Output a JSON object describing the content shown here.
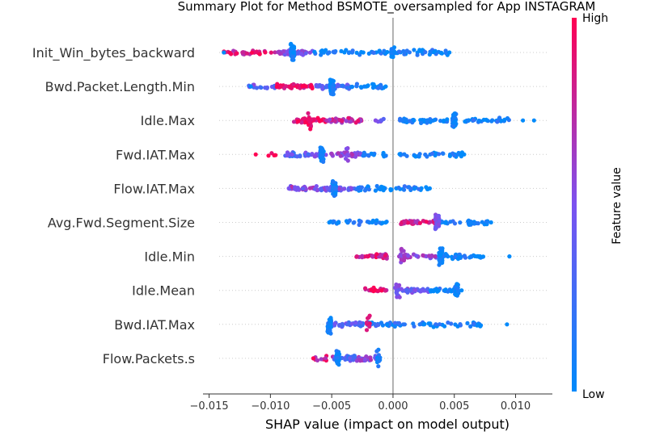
{
  "chart_data": {
    "type": "scatter",
    "subtype": "shap-beeswarm-summary",
    "title": "Summary Plot for Method BSMOTE_oversampled for App INSTAGRAM",
    "xlabel": "SHAP value (impact on model output)",
    "xlim": [
      -0.0155,
      0.013
    ],
    "xticks": [
      -0.015,
      -0.01,
      -0.005,
      0.0,
      0.005,
      0.01
    ],
    "xtick_labels": [
      "−0.015",
      "−0.010",
      "−0.005",
      "0.000",
      "0.005",
      "0.010"
    ],
    "zero_line": 0.0,
    "grid": false,
    "colorbar": {
      "label": "Feature value",
      "high_label": "High",
      "low_label": "Low",
      "low_color": "#008afb",
      "mid_color": "#7c52f0",
      "high_color": "#ff0052"
    },
    "features": [
      {
        "name": "Init_Win_bytes_backward",
        "segments": [
          {
            "x0": -0.0142,
            "x1": -0.0095,
            "n": 30,
            "v": 0.85
          },
          {
            "x0": -0.0095,
            "x1": -0.0065,
            "n": 45,
            "v": 0.5
          },
          {
            "x0": -0.0065,
            "x1": -0.0005,
            "n": 40,
            "v": 0.05
          },
          {
            "x0": -0.0005,
            "x1": 0.0045,
            "n": 40,
            "v": 0.05
          }
        ],
        "clusters": [
          {
            "x": -0.0082,
            "n": 36,
            "v": 0.05
          },
          {
            "x": 0.0,
            "n": 10,
            "v": 0.05
          }
        ],
        "outliers": [
          {
            "x": -0.0138,
            "v": 0.0
          },
          {
            "x": 0.0046,
            "v": 0.0
          }
        ]
      },
      {
        "name": "Bwd.Packet.Length.Min",
        "segments": [
          {
            "x0": -0.0118,
            "x1": -0.0095,
            "n": 18,
            "v": 0.4
          },
          {
            "x0": -0.0095,
            "x1": -0.0065,
            "n": 40,
            "v": 0.9
          },
          {
            "x0": -0.0065,
            "x1": -0.0035,
            "n": 40,
            "v": 0.35
          },
          {
            "x0": -0.0035,
            "x1": -0.0005,
            "n": 25,
            "v": 0.05
          }
        ],
        "clusters": [
          {
            "x": -0.005,
            "n": 38,
            "v": 0.05
          }
        ],
        "outliers": [
          {
            "x": -0.0116,
            "v": 0.0
          },
          {
            "x": -0.0006,
            "v": 0.0
          }
        ]
      },
      {
        "name": "Idle.Max",
        "segments": [
          {
            "x0": -0.0082,
            "x1": -0.0055,
            "n": 40,
            "v": 0.95
          },
          {
            "x0": -0.0055,
            "x1": -0.0025,
            "n": 35,
            "v": 0.75
          },
          {
            "x0": -0.0015,
            "x1": -0.0005,
            "n": 8,
            "v": 0.5
          },
          {
            "x0": 0.0005,
            "x1": 0.0045,
            "n": 40,
            "v": 0.05
          },
          {
            "x0": 0.0055,
            "x1": 0.0095,
            "n": 35,
            "v": 0.05
          }
        ],
        "clusters": [
          {
            "x": 0.005,
            "n": 38,
            "v": 0.05
          },
          {
            "x": -0.0068,
            "n": 14,
            "v": 0.95
          }
        ],
        "outliers": [
          {
            "x": 0.0115,
            "v": 0.0
          },
          {
            "x": 0.0106,
            "v": 0.0
          }
        ]
      },
      {
        "name": "Fwd.IAT.Max",
        "segments": [
          {
            "x0": -0.0112,
            "x1": -0.0095,
            "n": 4,
            "v": 0.95
          },
          {
            "x0": -0.0088,
            "x1": -0.0065,
            "n": 28,
            "v": 0.35
          },
          {
            "x0": -0.0065,
            "x1": -0.0025,
            "n": 40,
            "v": 0.55
          },
          {
            "x0": -0.0025,
            "x1": -0.0005,
            "n": 15,
            "v": 0.05
          },
          {
            "x0": 0.0005,
            "x1": 0.0058,
            "n": 35,
            "v": 0.05
          }
        ],
        "clusters": [
          {
            "x": -0.0058,
            "n": 36,
            "v": 0.05
          },
          {
            "x": -0.0038,
            "n": 10,
            "v": 0.6
          }
        ],
        "outliers": [
          {
            "x": -0.0112,
            "v": 1.0
          },
          {
            "x": 0.0058,
            "v": 0.0
          }
        ]
      },
      {
        "name": "Flow.IAT.Max",
        "segments": [
          {
            "x0": -0.0085,
            "x1": -0.006,
            "n": 30,
            "v": 0.55
          },
          {
            "x0": -0.006,
            "x1": -0.003,
            "n": 38,
            "v": 0.45
          },
          {
            "x0": -0.003,
            "x1": 0.0,
            "n": 30,
            "v": 0.05
          },
          {
            "x0": 0.0,
            "x1": 0.003,
            "n": 20,
            "v": 0.05
          }
        ],
        "clusters": [
          {
            "x": -0.0048,
            "n": 34,
            "v": 0.05
          }
        ],
        "outliers": [
          {
            "x": 0.003,
            "v": 0.0
          },
          {
            "x": -0.0085,
            "v": 0.5
          }
        ]
      },
      {
        "name": "Avg.Fwd.Segment.Size",
        "segments": [
          {
            "x0": -0.0052,
            "x1": -0.0005,
            "n": 32,
            "v": 0.05
          },
          {
            "x0": 0.0005,
            "x1": 0.0035,
            "n": 40,
            "v": 0.8
          },
          {
            "x0": 0.0035,
            "x1": 0.008,
            "n": 40,
            "v": 0.05
          }
        ],
        "clusters": [
          {
            "x": 0.0036,
            "n": 36,
            "v": 0.5
          }
        ],
        "outliers": [
          {
            "x": -0.0052,
            "v": 0.0
          },
          {
            "x": 0.008,
            "v": 0.0
          }
        ]
      },
      {
        "name": "Idle.Min",
        "segments": [
          {
            "x0": -0.003,
            "x1": -0.0005,
            "n": 35,
            "v": 0.85
          },
          {
            "x0": 0.0005,
            "x1": 0.004,
            "n": 32,
            "v": 0.55
          },
          {
            "x0": 0.004,
            "x1": 0.0075,
            "n": 35,
            "v": 0.05
          }
        ],
        "clusters": [
          {
            "x": 0.0039,
            "n": 40,
            "v": 0.05
          },
          {
            "x": 0.0008,
            "n": 12,
            "v": 0.6
          }
        ],
        "outliers": [
          {
            "x": 0.0095,
            "v": 0.0
          }
        ]
      },
      {
        "name": "Idle.Mean",
        "segments": [
          {
            "x0": -0.0023,
            "x1": -0.0005,
            "n": 22,
            "v": 0.85
          },
          {
            "x0": 0.0,
            "x1": 0.003,
            "n": 35,
            "v": 0.45
          },
          {
            "x0": 0.003,
            "x1": 0.0055,
            "n": 30,
            "v": 0.05
          }
        ],
        "clusters": [
          {
            "x": 0.0052,
            "n": 34,
            "v": 0.05
          },
          {
            "x": 0.0004,
            "n": 10,
            "v": 0.5
          }
        ],
        "outliers": [
          {
            "x": 0.0056,
            "v": 0.0
          }
        ]
      },
      {
        "name": "Bwd.IAT.Max",
        "segments": [
          {
            "x0": -0.0053,
            "x1": -0.002,
            "n": 40,
            "v": 0.35
          },
          {
            "x0": -0.002,
            "x1": 0.0025,
            "n": 40,
            "v": 0.15
          },
          {
            "x0": 0.0025,
            "x1": 0.0075,
            "n": 38,
            "v": 0.05
          }
        ],
        "clusters": [
          {
            "x": -0.0052,
            "n": 34,
            "v": 0.05
          },
          {
            "x": -0.002,
            "n": 8,
            "v": 0.9
          }
        ],
        "outliers": [
          {
            "x": 0.0093,
            "v": 0.0
          }
        ]
      },
      {
        "name": "Flow.Packets.s",
        "segments": [
          {
            "x0": -0.0065,
            "x1": -0.0048,
            "n": 10,
            "v": 0.8
          },
          {
            "x0": -0.0048,
            "x1": -0.003,
            "n": 30,
            "v": 0.35
          },
          {
            "x0": -0.003,
            "x1": -0.001,
            "n": 30,
            "v": 0.55
          }
        ],
        "clusters": [
          {
            "x": -0.0045,
            "n": 30,
            "v": 0.05
          },
          {
            "x": -0.0012,
            "n": 14,
            "v": 0.1
          }
        ],
        "outliers": [
          {
            "x": -0.0065,
            "v": 1.0
          }
        ]
      }
    ]
  }
}
